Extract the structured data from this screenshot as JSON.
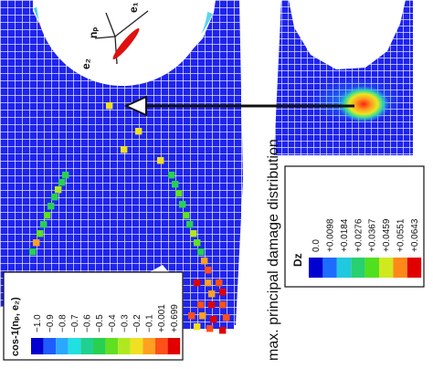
{
  "figure": {
    "caption": "max. principal damage distribution",
    "vectors": {
      "e1": "e₁",
      "e2": "e₂",
      "np": "nₚ"
    }
  },
  "legend_left": {
    "title": "cos-1(nₚ, e₂)",
    "values": [
      "−1.0",
      "−0.9",
      "−0.8",
      "−0.7",
      "−0.6",
      "−0.5",
      "−0.4",
      "−0.3",
      "−0.2",
      "−0.1",
      "+0.001",
      "+0.699"
    ],
    "colors": [
      "#0000d0",
      "#1e5cff",
      "#2aa8ff",
      "#20e0e0",
      "#20d090",
      "#28d050",
      "#60e020",
      "#b0e820",
      "#f0e020",
      "#ffa020",
      "#ff5018",
      "#e00000"
    ]
  },
  "legend_right": {
    "title": "Dz",
    "values": [
      "0.0",
      "+0.0098",
      "+0.0184",
      "+0.0276",
      "+0.0367",
      "+0.0459",
      "+0.0551",
      "+0.0643"
    ],
    "colors": [
      "#0000d0",
      "#1e6cff",
      "#20c8e0",
      "#28d070",
      "#50e020",
      "#d0e820",
      "#ff8818",
      "#e00000"
    ]
  }
}
